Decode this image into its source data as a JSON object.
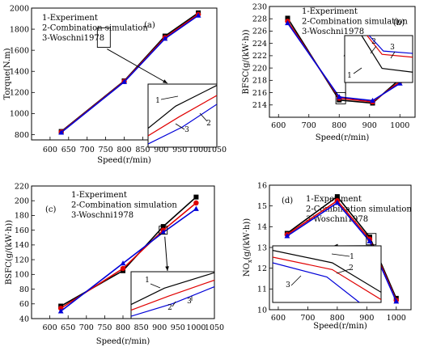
{
  "figure": {
    "legend_lines": [
      "1-Experiment",
      "2-Combination simulation",
      "3-Woschni1978"
    ],
    "colors": {
      "experiment": "#000000",
      "combination": "#e00000",
      "woschni": "#0000d8",
      "zoom_box": "#000000"
    }
  },
  "chart_data": [
    {
      "type": "line",
      "panel": "(a)",
      "xlabel": "Speed(r/min)",
      "ylabel": "Torque(N.m)",
      "x": [
        630,
        800,
        910,
        1000
      ],
      "xlim": [
        550,
        1050
      ],
      "ylim": [
        750,
        2000
      ],
      "xticks": [
        600,
        650,
        700,
        750,
        800,
        850,
        900,
        950,
        1000,
        1050
      ],
      "yticks": [
        800,
        1000,
        1200,
        1400,
        1600,
        1800,
        2000
      ],
      "tick_labels_x": [
        "600",
        "650",
        "700",
        "750",
        "800",
        "850",
        "900",
        "950",
        "1000",
        "1050"
      ],
      "tick_labels_y": [
        "800",
        "1000",
        "1200",
        "1400",
        "1600",
        "1800",
        "2000"
      ],
      "series": [
        {
          "name": "1-Experiment",
          "marker": "square",
          "values": [
            830,
            1310,
            1735,
            1955
          ]
        },
        {
          "name": "2-Combination simulation",
          "marker": "circle",
          "values": [
            825,
            1305,
            1720,
            1940
          ]
        },
        {
          "name": "3-Woschni1978",
          "marker": "triangle",
          "values": [
            820,
            1300,
            1710,
            1930
          ]
        }
      ],
      "legend_position": "top-left",
      "inset_labels": [
        "1",
        "2",
        "3"
      ]
    },
    {
      "type": "line",
      "panel": "(b)",
      "xlabel": "Speed(r/min)",
      "ylabel": "BFSC(g/(kW·h))",
      "x": [
        630,
        800,
        910,
        1000
      ],
      "xlim": [
        570,
        1050
      ],
      "ylim": [
        212,
        230
      ],
      "xticks": [
        600,
        700,
        800,
        900,
        1000
      ],
      "yticks": [
        214,
        216,
        218,
        220,
        222,
        224,
        226,
        228,
        230
      ],
      "tick_labels_x": [
        "600",
        "700",
        "800",
        "900",
        "1000"
      ],
      "tick_labels_y": [
        "214",
        "216",
        "218",
        "220",
        "222",
        "224",
        "226",
        "228",
        "230"
      ],
      "series": [
        {
          "name": "1-Experiment",
          "marker": "square",
          "values": [
            228.1,
            214.8,
            214.3,
            218.2
          ]
        },
        {
          "name": "2-Combination simulation",
          "marker": "circle",
          "values": [
            227.6,
            215.1,
            214.5,
            217.8
          ]
        },
        {
          "name": "3-Woschni1978",
          "marker": "triangle",
          "values": [
            227.3,
            215.3,
            214.7,
            217.5
          ]
        }
      ],
      "legend_position": "top-right",
      "inset_labels": [
        "1",
        "2",
        "3"
      ]
    },
    {
      "type": "line",
      "panel": "(c)",
      "xlabel": "Speed(r/min)",
      "ylabel": "BSFC(g/(kW·h))",
      "x": [
        630,
        800,
        910,
        1000
      ],
      "xlim": [
        550,
        1050
      ],
      "ylim": [
        40,
        220
      ],
      "xticks": [
        600,
        650,
        700,
        750,
        800,
        850,
        900,
        950,
        1000,
        1050
      ],
      "yticks": [
        40,
        60,
        80,
        100,
        120,
        140,
        160,
        180,
        200,
        220
      ],
      "tick_labels_x": [
        "600",
        "650",
        "700",
        "750",
        "800",
        "850",
        "900",
        "950",
        "1000",
        "1050"
      ],
      "tick_labels_y": [
        "40",
        "60",
        "80",
        "100",
        "120",
        "140",
        "160",
        "180",
        "200",
        "220"
      ],
      "series": [
        {
          "name": "1-Experiment",
          "marker": "square",
          "values": [
            57,
            105,
            165,
            205
          ]
        },
        {
          "name": "2-Combination simulation",
          "marker": "circle",
          "values": [
            54,
            108,
            160,
            197
          ]
        },
        {
          "name": "3-Woschni1978",
          "marker": "triangle",
          "values": [
            50,
            115,
            157,
            189
          ]
        }
      ],
      "legend_position": "top-left",
      "inset_labels": [
        "1",
        "2",
        "3"
      ]
    },
    {
      "type": "line",
      "panel": "(d)",
      "xlabel": "Speed(r/min)",
      "ylabel": "NOx(g/(kW·h))",
      "ylabel_main": "NO",
      "ylabel_sub": "x",
      "ylabel_rest": "(g/(kW·h))",
      "x": [
        630,
        800,
        910,
        1000
      ],
      "xlim": [
        570,
        1050
      ],
      "ylim": [
        10,
        16
      ],
      "xticks": [
        600,
        700,
        800,
        900,
        1000
      ],
      "yticks": [
        10,
        11,
        12,
        13,
        14,
        15,
        16
      ],
      "tick_labels_x": [
        "600",
        "700",
        "800",
        "900",
        "1000"
      ],
      "tick_labels_y": [
        "10",
        "11",
        "12",
        "13",
        "14",
        "15",
        "16"
      ],
      "series": [
        {
          "name": "1-Experiment",
          "marker": "square",
          "values": [
            13.68,
            15.45,
            13.5,
            10.55
          ]
        },
        {
          "name": "2-Combination simulation",
          "marker": "circle",
          "values": [
            13.62,
            15.25,
            13.4,
            10.45
          ]
        },
        {
          "name": "3-Woschni1978",
          "marker": "triangle",
          "values": [
            13.55,
            15.15,
            13.3,
            10.4
          ]
        }
      ],
      "legend_position": "top-right",
      "inset_labels": [
        "1",
        "2",
        "3"
      ]
    }
  ]
}
